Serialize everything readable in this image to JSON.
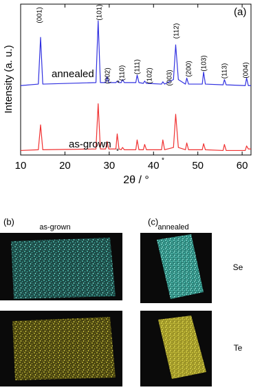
{
  "chart_data": {
    "type": "line",
    "panel_label": "(a)",
    "xlabel": "2θ / °",
    "ylabel": "Intensity (a. u.)",
    "xlim": [
      10,
      62
    ],
    "xticks": [
      10,
      20,
      30,
      40,
      50,
      60
    ],
    "ylim": [
      0,
      100
    ],
    "x": [
      10,
      14,
      14.5,
      15,
      27,
      27.5,
      28,
      29.2,
      29.5,
      29.9,
      31.5,
      31.8,
      32.2,
      32.7,
      33,
      33.4,
      36,
      36.3,
      36.7,
      37.7,
      38,
      38.4,
      41.8,
      42.1,
      42.5,
      44.5,
      45,
      45.6,
      47.2,
      47.5,
      47.9,
      51,
      51.3,
      51.7,
      55.7,
      56,
      56.4,
      60.7,
      61,
      61.4,
      62
    ],
    "series": [
      {
        "name": "annealed",
        "color": "#3030e0",
        "values": [
          46,
          47,
          78,
          47,
          48,
          89,
          48,
          48,
          52,
          48,
          48,
          49,
          48,
          48,
          50,
          48,
          48,
          53,
          48,
          47.5,
          49,
          47.5,
          47,
          48.5,
          47,
          50,
          73,
          50,
          47,
          51,
          47,
          47,
          55,
          47,
          46.5,
          50,
          46.5,
          46,
          51,
          46,
          46
        ]
      },
      {
        "name": "as-grown",
        "color": "#f03030",
        "values": [
          3,
          3.5,
          20,
          3.5,
          4,
          34,
          4,
          4,
          9,
          4,
          4,
          14,
          4,
          3.5,
          5,
          3.5,
          3.5,
          10,
          3.5,
          3.5,
          7,
          3.5,
          3.5,
          10,
          3.5,
          5,
          27,
          5,
          3.5,
          8,
          3.5,
          3.5,
          7.5,
          3.5,
          3,
          7,
          3,
          3,
          6,
          4,
          4
        ]
      }
    ],
    "annotations": [
      "(001)",
      "(101)",
      "(002)",
      "(110)",
      "(111)",
      "(102)",
      "(003)",
      "(112)",
      "(200)",
      "(103)",
      "(113)",
      "(004)",
      "*",
      "*",
      "*"
    ]
  },
  "maps": {
    "b": {
      "label": "(b)",
      "title": "as-grown"
    },
    "c": {
      "label": "(c)",
      "title": "annealed"
    },
    "elements": [
      "Se",
      "Te"
    ]
  }
}
